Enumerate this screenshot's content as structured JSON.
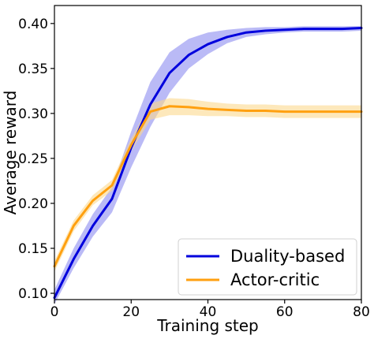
{
  "chart_data": {
    "type": "line",
    "xlabel": "Training step",
    "ylabel": "Average reward",
    "xlim": [
      0,
      80
    ],
    "ylim": [
      0.093,
      0.42
    ],
    "xticks": [
      0,
      20,
      40,
      60,
      80
    ],
    "yticks": [
      0.1,
      0.15,
      0.2,
      0.25,
      0.3,
      0.35,
      0.4
    ],
    "grid": false,
    "legend_position": "lower-right",
    "series": [
      {
        "name": "Duality-based",
        "color": "#0000dd",
        "band_color": "#8c8cf0",
        "x": [
          0,
          5,
          10,
          15,
          20,
          25,
          30,
          35,
          40,
          45,
          50,
          55,
          60,
          65,
          70,
          75,
          80
        ],
        "y": [
          0.095,
          0.138,
          0.175,
          0.205,
          0.262,
          0.31,
          0.345,
          0.365,
          0.377,
          0.385,
          0.39,
          0.392,
          0.393,
          0.394,
          0.394,
          0.394,
          0.395
        ],
        "lower": [
          0.088,
          0.128,
          0.163,
          0.19,
          0.24,
          0.285,
          0.323,
          0.35,
          0.366,
          0.378,
          0.385,
          0.388,
          0.39,
          0.391,
          0.391,
          0.391,
          0.392
        ],
        "upper": [
          0.104,
          0.15,
          0.188,
          0.218,
          0.28,
          0.335,
          0.368,
          0.383,
          0.39,
          0.393,
          0.395,
          0.396,
          0.396,
          0.397,
          0.397,
          0.397,
          0.397
        ]
      },
      {
        "name": "Actor-critic",
        "color": "#ffa010",
        "band_color": "#fbd98e",
        "x": [
          0,
          5,
          10,
          15,
          20,
          25,
          30,
          35,
          40,
          45,
          50,
          55,
          60,
          65,
          70,
          75,
          80
        ],
        "y": [
          0.13,
          0.175,
          0.203,
          0.22,
          0.265,
          0.302,
          0.308,
          0.307,
          0.305,
          0.304,
          0.303,
          0.303,
          0.302,
          0.302,
          0.302,
          0.302,
          0.302
        ],
        "lower": [
          0.124,
          0.169,
          0.198,
          0.214,
          0.258,
          0.293,
          0.298,
          0.298,
          0.297,
          0.297,
          0.296,
          0.296,
          0.295,
          0.295,
          0.295,
          0.295,
          0.295
        ],
        "upper": [
          0.136,
          0.181,
          0.209,
          0.226,
          0.272,
          0.311,
          0.317,
          0.316,
          0.313,
          0.311,
          0.31,
          0.31,
          0.309,
          0.309,
          0.309,
          0.309,
          0.309
        ]
      }
    ]
  }
}
